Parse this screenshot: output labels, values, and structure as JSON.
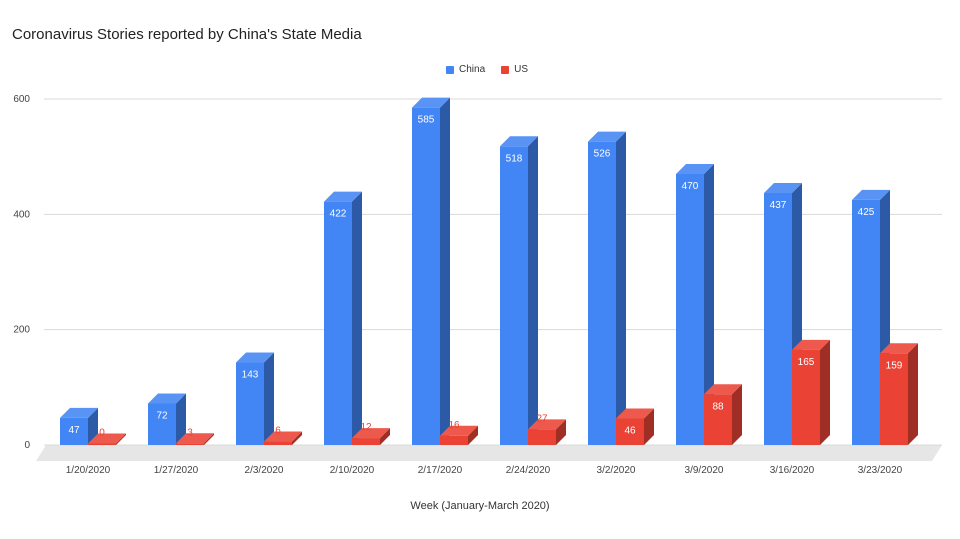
{
  "chart_data": {
    "type": "bar",
    "title": "Coronavirus Stories reported by China's State Media",
    "xlabel": "Week (January-March 2020)",
    "ylabel": "",
    "ylim": [
      0,
      600
    ],
    "yticks": [
      0,
      200,
      400,
      600
    ],
    "grid": true,
    "legend_position": "top-center",
    "categories": [
      "1/20/2020",
      "1/27/2020",
      "2/3/2020",
      "2/10/2020",
      "2/17/2020",
      "2/24/2020",
      "3/2/2020",
      "3/9/2020",
      "3/16/2020",
      "3/23/2020"
    ],
    "series": [
      {
        "name": "China",
        "color": "#4285f4",
        "values": [
          47,
          72,
          143,
          422,
          585,
          518,
          526,
          470,
          437,
          425
        ]
      },
      {
        "name": "US",
        "color": "#ea4335",
        "values": [
          0,
          3,
          6,
          12,
          16,
          27,
          46,
          88,
          165,
          159
        ]
      }
    ]
  }
}
